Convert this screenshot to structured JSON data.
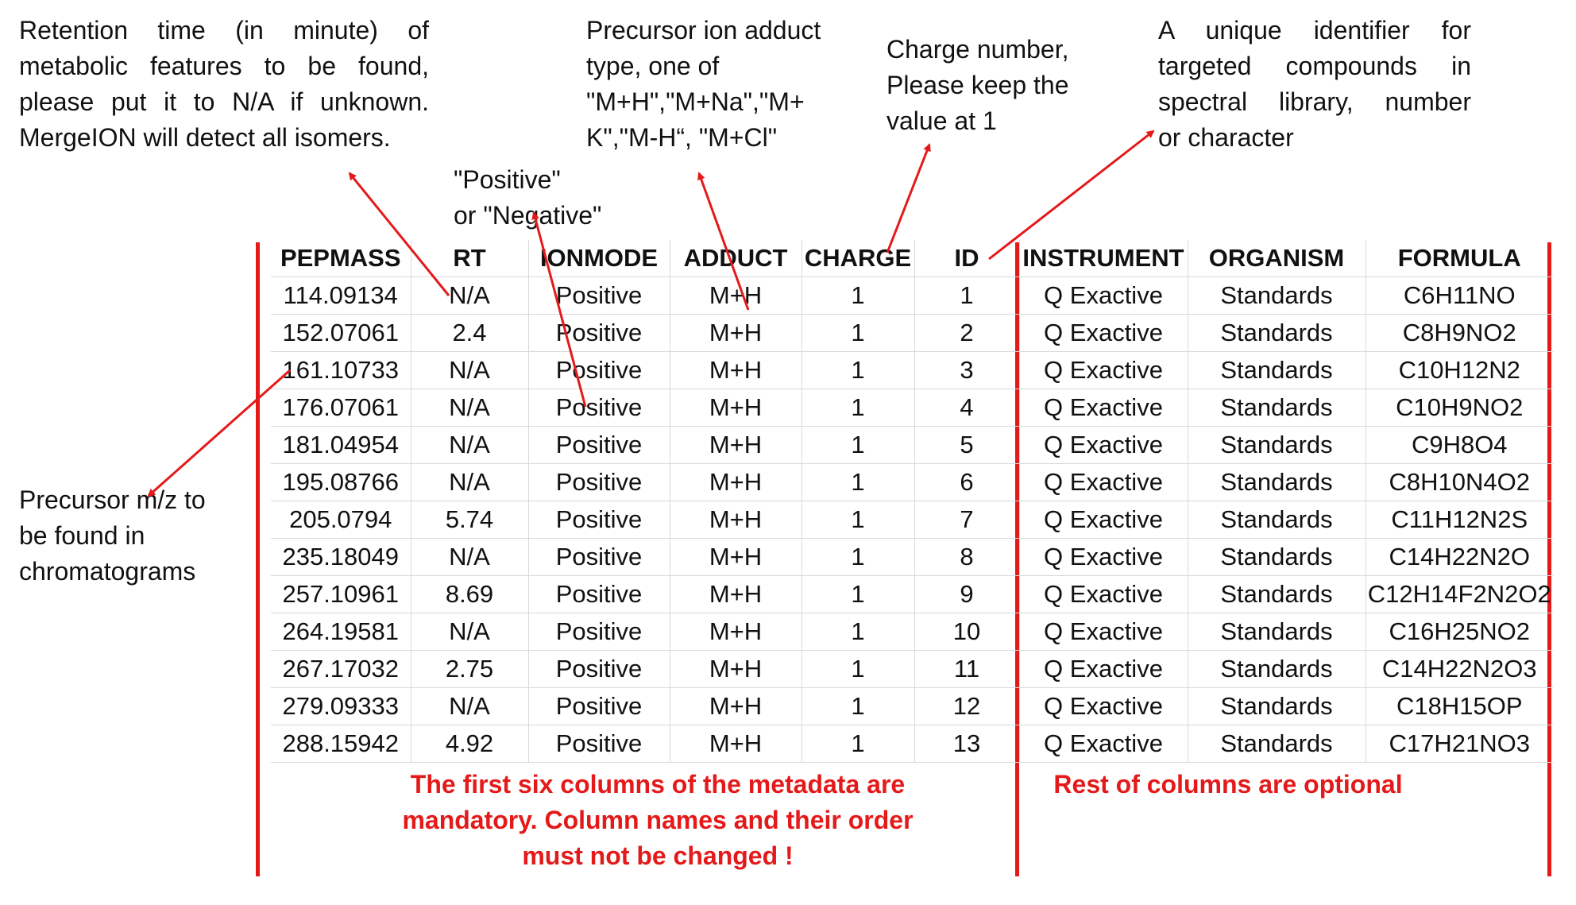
{
  "annotations": {
    "rt_note": {
      "lines": [
        "Retention time (in minute) of",
        "metabolic features to be found,",
        "please put it to N/A if unknown.",
        "MergeION will detect all isomers."
      ]
    },
    "ionmode_note": {
      "lines": [
        "\"Positive\"",
        "or \"Negative\""
      ]
    },
    "adduct_note": {
      "lines": [
        "Precursor ion adduct",
        "type, one of",
        "\"M+H\",\"M+Na\",\"M+",
        "K\",\"M-H“, \"M+Cl\""
      ]
    },
    "charge_note": {
      "lines": [
        "Charge number,",
        "Please keep the",
        "value at 1"
      ]
    },
    "id_note": {
      "lines": [
        "A unique identifier for",
        "targeted compounds in",
        "spectral library, number",
        "or character"
      ]
    },
    "mz_note": {
      "lines": [
        "Precursor m/z to",
        "be found in",
        "chromatograms"
      ]
    }
  },
  "table": {
    "headers": [
      "PEPMASS",
      "RT",
      "IONMODE",
      "ADDUCT",
      "CHARGE",
      "ID",
      "INSTRUMENT",
      "ORGANISM",
      "FORMULA"
    ],
    "rows": [
      [
        "114.09134",
        "N/A",
        "Positive",
        "M+H",
        "1",
        "1",
        "Q Exactive",
        "Standards",
        "C6H11NO"
      ],
      [
        "152.07061",
        "2.4",
        "Positive",
        "M+H",
        "1",
        "2",
        "Q Exactive",
        "Standards",
        "C8H9NO2"
      ],
      [
        "161.10733",
        "N/A",
        "Positive",
        "M+H",
        "1",
        "3",
        "Q Exactive",
        "Standards",
        "C10H12N2"
      ],
      [
        "176.07061",
        "N/A",
        "Positive",
        "M+H",
        "1",
        "4",
        "Q Exactive",
        "Standards",
        "C10H9NO2"
      ],
      [
        "181.04954",
        "N/A",
        "Positive",
        "M+H",
        "1",
        "5",
        "Q Exactive",
        "Standards",
        "C9H8O4"
      ],
      [
        "195.08766",
        "N/A",
        "Positive",
        "M+H",
        "1",
        "6",
        "Q Exactive",
        "Standards",
        "C8H10N4O2"
      ],
      [
        "205.0794",
        "5.74",
        "Positive",
        "M+H",
        "1",
        "7",
        "Q Exactive",
        "Standards",
        "C11H12N2S"
      ],
      [
        "235.18049",
        "N/A",
        "Positive",
        "M+H",
        "1",
        "8",
        "Q Exactive",
        "Standards",
        "C14H22N2O"
      ],
      [
        "257.10961",
        "8.69",
        "Positive",
        "M+H",
        "1",
        "9",
        "Q Exactive",
        "Standards",
        "C12H14F2N2O2"
      ],
      [
        "264.19581",
        "N/A",
        "Positive",
        "M+H",
        "1",
        "10",
        "Q Exactive",
        "Standards",
        "C16H25NO2"
      ],
      [
        "267.17032",
        "2.75",
        "Positive",
        "M+H",
        "1",
        "11",
        "Q Exactive",
        "Standards",
        "C14H22N2O3"
      ],
      [
        "279.09333",
        "N/A",
        "Positive",
        "M+H",
        "1",
        "12",
        "Q Exactive",
        "Standards",
        "C18H15OP"
      ],
      [
        "288.15942",
        "4.92",
        "Positive",
        "M+H",
        "1",
        "13",
        "Q Exactive",
        "Standards",
        "C17H21NO3"
      ]
    ]
  },
  "footer_notes": {
    "mandatory_lines": [
      "The first six columns of the metadata are",
      "mandatory. Column names and their order",
      "must not be changed !"
    ],
    "optional_lines": [
      "Rest of columns are optional"
    ]
  },
  "colors": {
    "accent": "#e41a1a",
    "text": "#111111",
    "grid": "#d9d9d9"
  }
}
